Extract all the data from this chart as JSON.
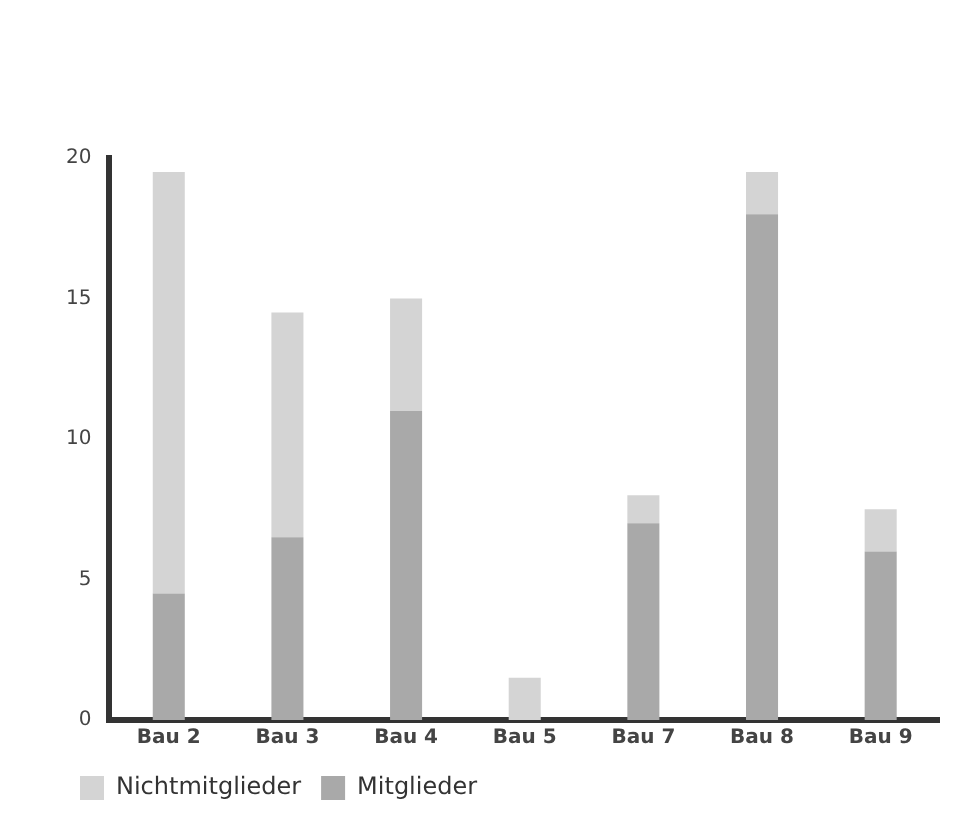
{
  "chart_data": {
    "type": "bar",
    "stacked": true,
    "categories": [
      "Bau 2",
      "Bau 3",
      "Bau 4",
      "Bau 5",
      "Bau 7",
      "Bau 8",
      "Bau 9"
    ],
    "series": [
      {
        "name": "Mitglieder",
        "color": "#a9a9a9",
        "values": [
          4.5,
          6.5,
          11,
          0,
          7,
          18,
          6
        ]
      },
      {
        "name": "Nichtmitglieder",
        "color": "#d4d4d4",
        "values": [
          15,
          8,
          4,
          1.5,
          1,
          1.5,
          1.5
        ]
      }
    ],
    "ylim": [
      0,
      20
    ],
    "yticks": [
      0,
      5,
      10,
      15,
      20
    ],
    "grid": false,
    "legend": "bottom left"
  }
}
